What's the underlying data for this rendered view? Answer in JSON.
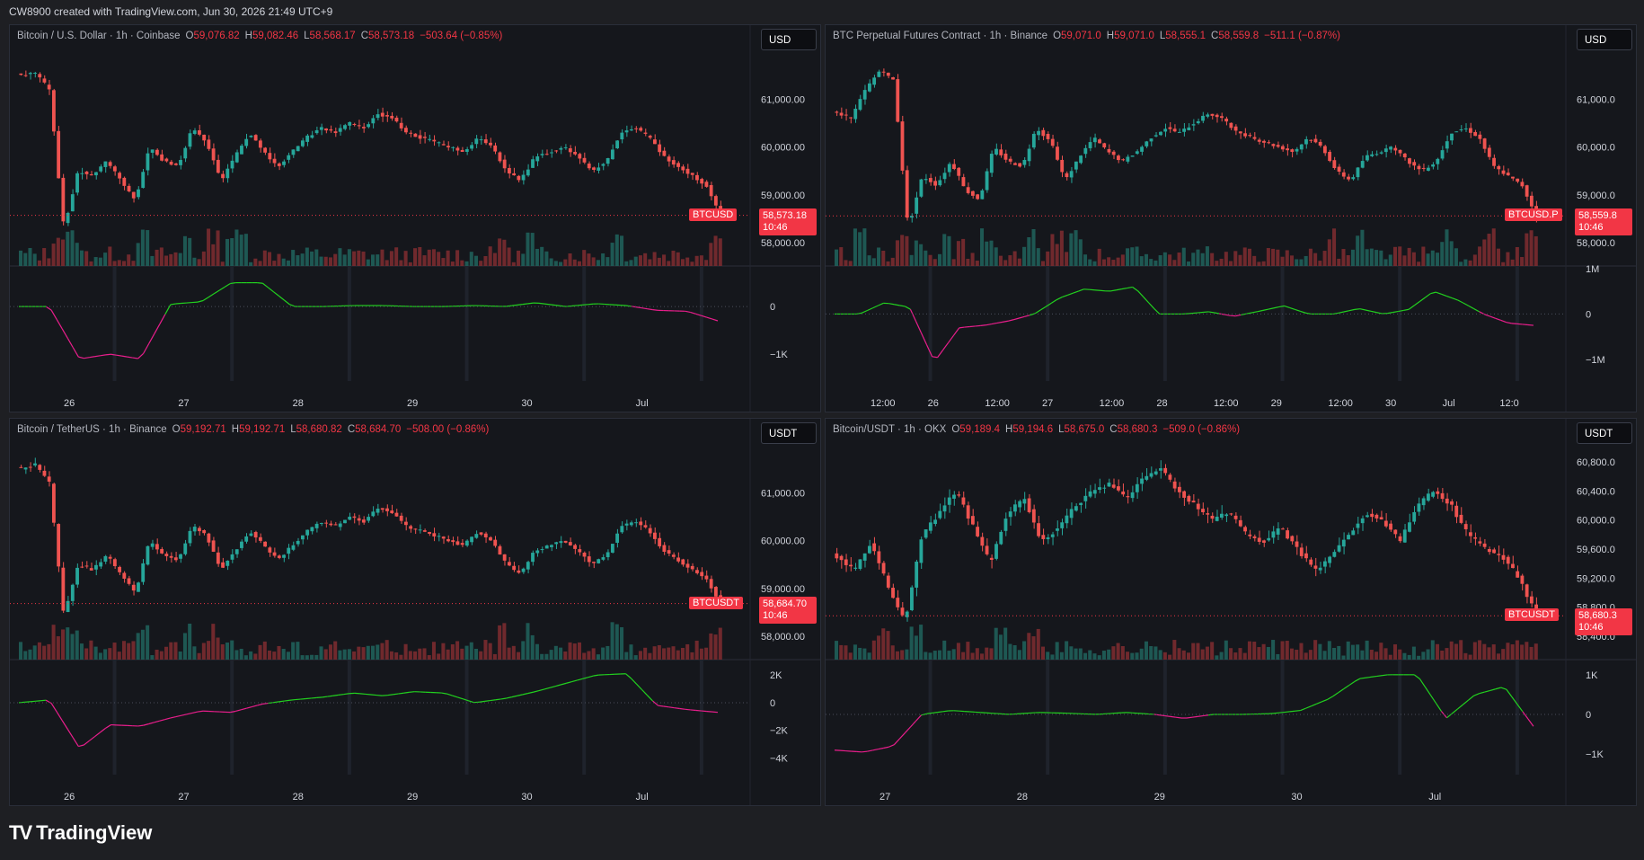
{
  "header": {
    "text": "CW8900 created with TradingView.com, Jun 30, 2026 21:49 UTC+9"
  },
  "brand": {
    "logo_text": "TV",
    "name": "TradingView"
  },
  "colors": {
    "up": "#26a69a",
    "down": "#ef5350",
    "cvd_up": "#22d11f",
    "cvd_down": "#e91e8c",
    "tag": "#f23645"
  },
  "panes": [
    {
      "title": "Bitcoin / U.S. Dollar · 1h · Coinbase",
      "o_label": "O",
      "o": "59,076.82",
      "h_label": "H",
      "h": "59,082.46",
      "l_label": "L",
      "l": "58,568.17",
      "c_label": "C",
      "c": "58,573.18",
      "chg": "−503.64 (−0.85%)",
      "currency": "USD",
      "symbol_tag": "BTCUSD",
      "price_tag": "58,573.18",
      "time_tag": "10:46",
      "price_labels": [
        "61,000.00",
        "60,000.00",
        "59,000.00",
        "58,000.00"
      ],
      "cvd_labels": [
        "0",
        "−1K"
      ],
      "time_labels": [
        "26",
        "27",
        "28",
        "29",
        "30",
        "Jul"
      ]
    },
    {
      "title": "BTC Perpetual Futures Contract · 1h · Binance",
      "o_label": "O",
      "o": "59,071.0",
      "h_label": "H",
      "h": "59,071.0",
      "l_label": "L",
      "l": "58,555.1",
      "c_label": "C",
      "c": "58,559.8",
      "chg": "−511.1 (−0.87%)",
      "currency": "USD",
      "symbol_tag": "BTCUSD.P",
      "price_tag": "58,559.8",
      "time_tag": "10:46",
      "price_labels": [
        "61,000.0",
        "60,000.0",
        "59,000.0",
        "58,000.0"
      ],
      "cvd_labels": [
        "1M",
        "0",
        "−1M"
      ],
      "time_labels": [
        "12:00",
        "26",
        "12:00",
        "27",
        "12:00",
        "28",
        "12:00",
        "29",
        "12:00",
        "30",
        "Jul",
        "12:0"
      ]
    },
    {
      "title": "Bitcoin / TetherUS · 1h · Binance",
      "o_label": "O",
      "o": "59,192.71",
      "h_label": "H",
      "h": "59,192.71",
      "l_label": "L",
      "l": "58,680.82",
      "c_label": "C",
      "c": "58,684.70",
      "chg": "−508.00 (−0.86%)",
      "currency": "USDT",
      "symbol_tag": "BTCUSDT",
      "price_tag": "58,684.70",
      "time_tag": "10:46",
      "price_labels": [
        "61,000.00",
        "60,000.00",
        "59,000.00",
        "58,000.00"
      ],
      "cvd_labels": [
        "2K",
        "0",
        "−2K",
        "−4K"
      ],
      "time_labels": [
        "26",
        "27",
        "28",
        "29",
        "30",
        "Jul"
      ]
    },
    {
      "title": "Bitcoin/USDT · 1h · OKX",
      "o_label": "O",
      "o": "59,189.4",
      "h_label": "H",
      "h": "59,194.6",
      "l_label": "L",
      "l": "58,675.0",
      "c_label": "C",
      "c": "58,680.3",
      "chg": "−509.0 (−0.86%)",
      "currency": "USDT",
      "symbol_tag": "BTCUSDT",
      "price_tag": "58,680.3",
      "time_tag": "10:46",
      "price_labels": [
        "60,800.0",
        "60,400.0",
        "60,000.0",
        "59,600.0",
        "59,200.0",
        "58,800.0",
        "58,400.0"
      ],
      "cvd_labels": [
        "1K",
        "0",
        "−1K"
      ],
      "time_labels": [
        "27",
        "28",
        "29",
        "30",
        "Jul"
      ]
    }
  ],
  "chart_data": [
    {
      "type": "candlestick",
      "title": "Bitcoin / U.S. Dollar · 1h · Coinbase",
      "ylim": [
        57700,
        61800
      ],
      "close_path": [
        61500,
        61550,
        61200,
        58300,
        59500,
        59400,
        59700,
        59300,
        58900,
        60000,
        59700,
        59600,
        60400,
        60100,
        59300,
        59800,
        60300,
        59900,
        59600,
        59900,
        60200,
        60400,
        60300,
        60500,
        60400,
        60700,
        60600,
        60300,
        60200,
        60100,
        60000,
        59900,
        60200,
        60000,
        59500,
        59300,
        59800,
        59900,
        60000,
        59800,
        59500,
        59700,
        60300,
        60400,
        60200,
        59800,
        59600,
        59400,
        59200,
        58573
      ],
      "cvd_ylim": [
        -1300,
        700
      ],
      "cvd_path": [
        0,
        0,
        -1100,
        -1000,
        -1100,
        50,
        100,
        500,
        500,
        0,
        0,
        20,
        20,
        0,
        0,
        20,
        0,
        80,
        0,
        60,
        20,
        -80,
        -100,
        -300
      ]
    },
    {
      "type": "candlestick",
      "title": "BTC Perpetual Futures Contract · 1h · Binance",
      "ylim": [
        57700,
        61800
      ],
      "close_path": [
        60700,
        60600,
        61200,
        61600,
        61400,
        58300,
        59400,
        59200,
        59700,
        59100,
        58900,
        60000,
        59700,
        59600,
        60400,
        60100,
        59300,
        59800,
        60200,
        59900,
        59700,
        59900,
        60200,
        60400,
        60300,
        60500,
        60700,
        60600,
        60300,
        60200,
        60100,
        60000,
        59900,
        60200,
        60000,
        59500,
        59300,
        59800,
        59900,
        60000,
        59700,
        59500,
        59700,
        60300,
        60400,
        60200,
        59600,
        59400,
        59200,
        58560
      ],
      "cvd_ylim": [
        -1200000,
        900000
      ],
      "cvd_path": [
        0,
        0,
        250000,
        150000,
        -1050000,
        -300000,
        -250000,
        -150000,
        0,
        350000,
        550000,
        500000,
        600000,
        0,
        0,
        50000,
        -50000,
        60000,
        180000,
        0,
        0,
        120000,
        0,
        100000,
        500000,
        300000,
        0,
        -200000,
        -250000
      ]
    },
    {
      "type": "candlestick",
      "title": "Bitcoin / TetherUS · 1h · Binance",
      "ylim": [
        57700,
        61800
      ],
      "close_path": [
        61500,
        61600,
        61200,
        58400,
        59500,
        59400,
        59700,
        59300,
        58900,
        60000,
        59700,
        59600,
        60300,
        60100,
        59400,
        59800,
        60200,
        59900,
        59600,
        59900,
        60200,
        60400,
        60300,
        60500,
        60400,
        60700,
        60600,
        60300,
        60200,
        60100,
        60000,
        59900,
        60200,
        60000,
        59500,
        59300,
        59800,
        59900,
        60000,
        59800,
        59500,
        59700,
        60300,
        60400,
        60200,
        59800,
        59600,
        59400,
        59200,
        58685
      ],
      "cvd_ylim": [
        -4300,
        2600
      ],
      "cvd_path": [
        0,
        200,
        -3300,
        -1600,
        -1700,
        -1100,
        -600,
        -700,
        -100,
        200,
        400,
        700,
        500,
        800,
        700,
        0,
        300,
        800,
        1400,
        2000,
        2100,
        -200,
        -500,
        -700
      ]
    },
    {
      "type": "candlestick",
      "title": "Bitcoin/USDT · 1h · OKX",
      "ylim": [
        58200,
        60900
      ],
      "close_path": [
        59500,
        59300,
        59700,
        59100,
        58600,
        59800,
        60100,
        60400,
        59900,
        59400,
        60100,
        60300,
        59700,
        59900,
        60200,
        60400,
        60500,
        60300,
        60600,
        60700,
        60400,
        60200,
        60000,
        60100,
        59800,
        59700,
        59900,
        59600,
        59300,
        59500,
        59800,
        60100,
        60000,
        59700,
        60200,
        60400,
        60200,
        59800,
        59600,
        59500,
        59200,
        58680
      ],
      "cvd_ylim": [
        -1200,
        1200
      ],
      "cvd_path": [
        -900,
        -950,
        -800,
        0,
        100,
        50,
        0,
        50,
        30,
        0,
        50,
        0,
        -100,
        0,
        0,
        20,
        100,
        400,
        900,
        1000,
        1000,
        -100,
        500,
        700,
        -300
      ]
    }
  ]
}
